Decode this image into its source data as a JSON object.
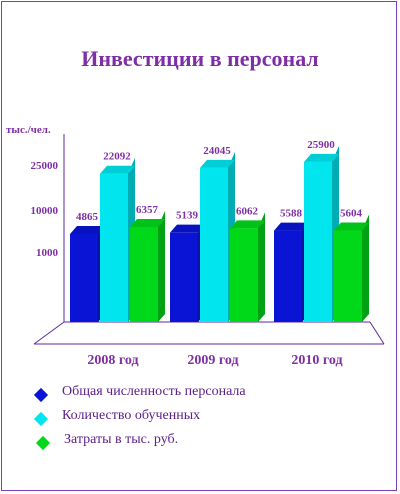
{
  "chart_data": {
    "type": "bar",
    "title": "Инвестиции в персонал",
    "ylabel": "тыс./чел.",
    "yticks": [
      "25000",
      "10000",
      "1000"
    ],
    "categories": [
      "2008 год",
      "2009 год",
      "2010 год"
    ],
    "series": [
      {
        "name": "Общая численность персонала",
        "values": [
          4865,
          5139,
          5588
        ],
        "color": "#0a14d4"
      },
      {
        "name": "Количество обученных",
        "values": [
          22092,
          24045,
          25900
        ],
        "color": "#00e5ee"
      },
      {
        "name": "Затраты в тыс. руб.",
        "values": [
          6357,
          6062,
          5604
        ],
        "color": "#00d81a"
      }
    ]
  }
}
